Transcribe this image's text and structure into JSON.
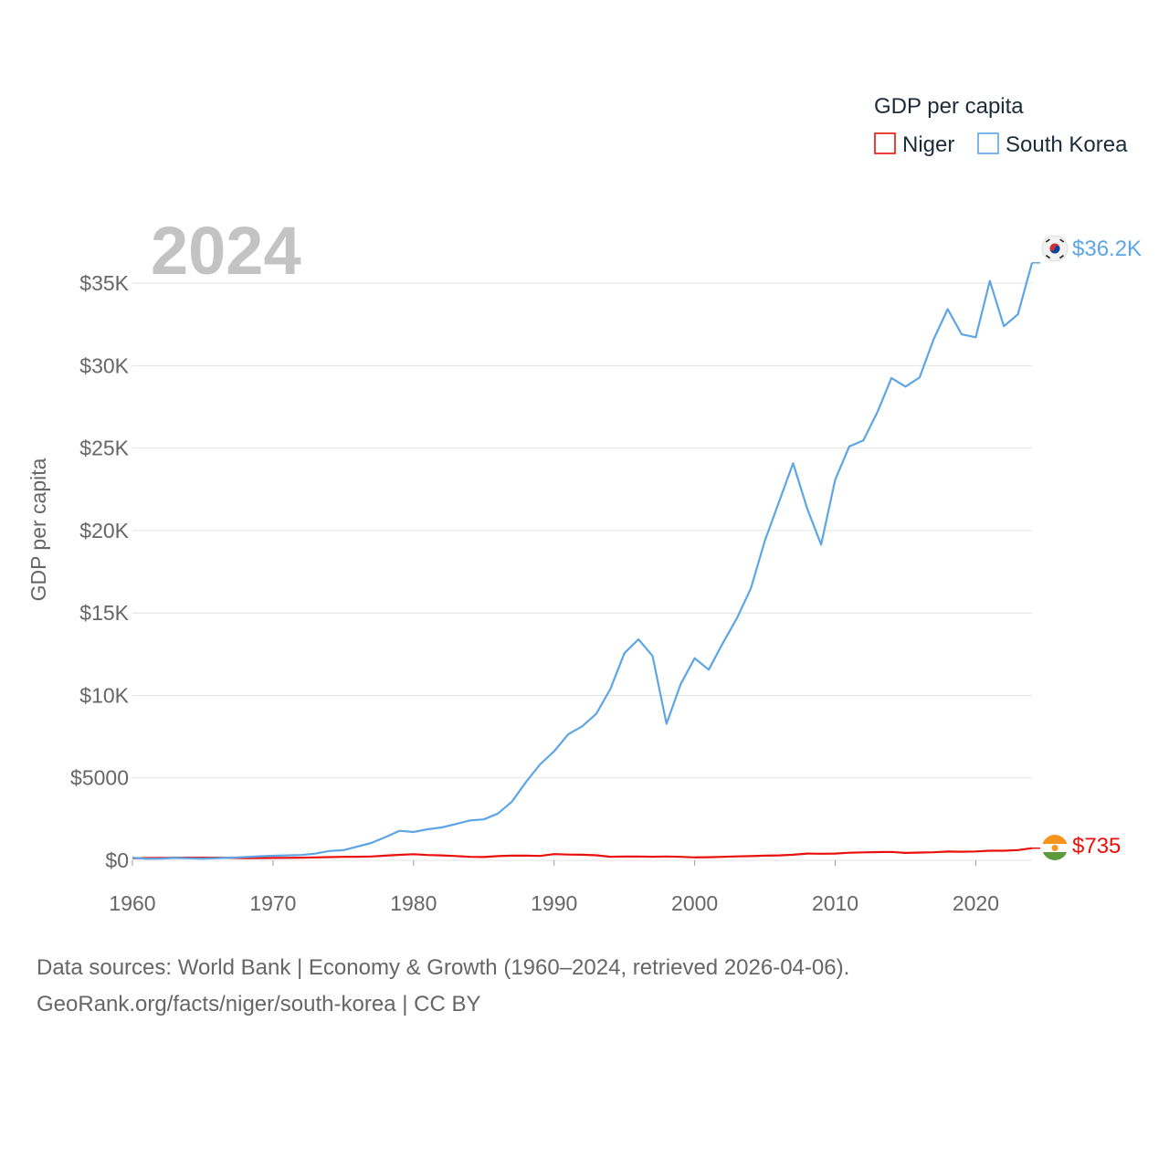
{
  "chart_data": {
    "type": "line",
    "title": "GDP per capita",
    "ylabel": "GDP per capita",
    "xlabel": "",
    "year_label": "2024",
    "xlim": [
      1960,
      2024
    ],
    "ylim": [
      0,
      37500
    ],
    "x_ticks": [
      1960,
      1970,
      1980,
      1990,
      2000,
      2010,
      2020
    ],
    "x_tick_labels": [
      "1960",
      "1970",
      "1980",
      "1990",
      "2000",
      "2010",
      "2020"
    ],
    "y_ticks": [
      0,
      5000,
      10000,
      15000,
      20000,
      25000,
      30000,
      35000
    ],
    "y_tick_labels": [
      "$0",
      "$5000",
      "$10K",
      "$15K",
      "$20K",
      "$25K",
      "$30K",
      "$35K"
    ],
    "grid": true,
    "legend_position": "top-right",
    "x": [
      1960,
      1961,
      1962,
      1963,
      1964,
      1965,
      1966,
      1967,
      1968,
      1969,
      1970,
      1971,
      1972,
      1973,
      1974,
      1975,
      1976,
      1977,
      1978,
      1979,
      1980,
      1981,
      1982,
      1983,
      1984,
      1985,
      1986,
      1987,
      1988,
      1989,
      1990,
      1991,
      1992,
      1993,
      1994,
      1995,
      1996,
      1997,
      1998,
      1999,
      2000,
      2001,
      2002,
      2003,
      2004,
      2005,
      2006,
      2007,
      2008,
      2009,
      2010,
      2011,
      2012,
      2013,
      2014,
      2015,
      2016,
      2017,
      2018,
      2019,
      2020,
      2021,
      2022,
      2023,
      2024
    ],
    "series": [
      {
        "name": "Niger",
        "color": "#e8100b",
        "end_label": "$735",
        "flag": "niger-flag",
        "values": [
          130,
          140,
          150,
          155,
          160,
          160,
          158,
          145,
          135,
          140,
          145,
          150,
          160,
          175,
          195,
          210,
          215,
          230,
          285,
          330,
          370,
          320,
          300,
          260,
          210,
          200,
          255,
          285,
          285,
          265,
          375,
          350,
          340,
          305,
          215,
          225,
          230,
          215,
          230,
          210,
          180,
          190,
          210,
          240,
          255,
          280,
          300,
          340,
          410,
          400,
          410,
          460,
          480,
          500,
          510,
          450,
          470,
          490,
          530,
          520,
          540,
          580,
          580,
          620,
          735
        ]
      },
      {
        "name": "South Korea",
        "color": "#5da5e5",
        "end_label": "$36.2K",
        "flag": "south-korea-flag",
        "values": [
          158,
          94,
          106,
          146,
          124,
          108,
          133,
          161,
          196,
          243,
          279,
          301,
          324,
          407,
          564,
          615,
          833,
          1055,
          1405,
          1790,
          1715,
          1883,
          1993,
          2199,
          2413,
          2482,
          2835,
          3555,
          4749,
          5817,
          6610,
          7637,
          8127,
          8884,
          10385,
          12565,
          13403,
          12398,
          8282,
          10672,
          12257,
          11561,
          13165,
          14673,
          16496,
          19403,
          21743,
          24086,
          21345,
          19144,
          23079,
          25096,
          25467,
          27182,
          29253,
          28732,
          29288,
          31601,
          33429,
          31902,
          31721,
          35142,
          32395,
          33121,
          36238
        ]
      }
    ]
  },
  "sources_line1": "Data sources: World Bank | Economy & Growth (1960–2024, retrieved 2026-04-06).",
  "sources_line2": "GeoRank.org/facts/niger/south-korea | CC BY"
}
